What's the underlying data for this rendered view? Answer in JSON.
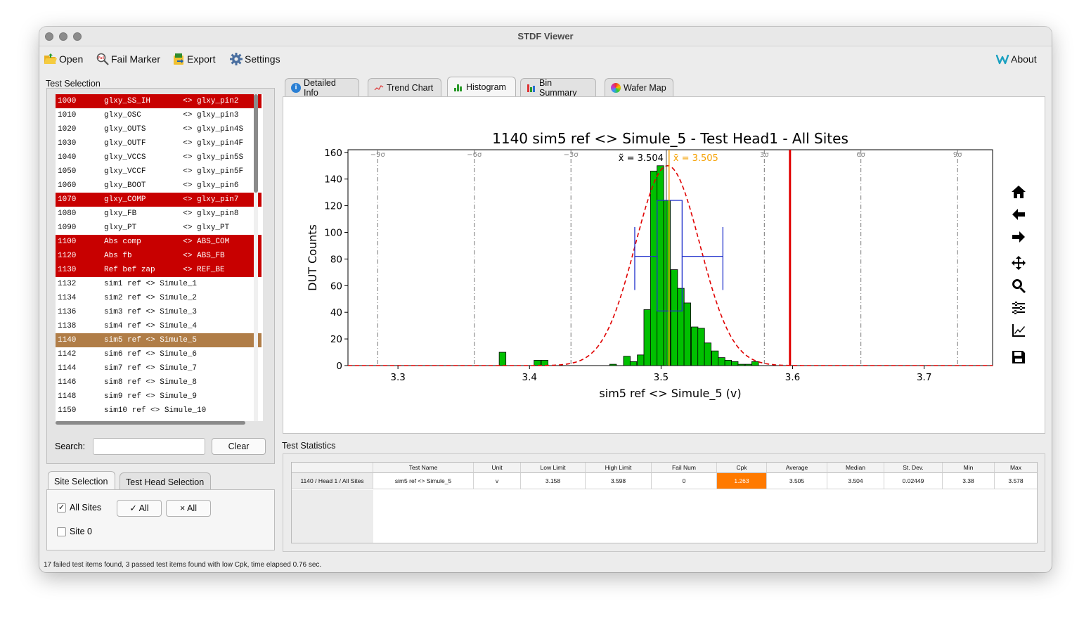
{
  "window": {
    "title": "STDF Viewer"
  },
  "toolbar": {
    "open": "Open",
    "fail_marker": "Fail Marker",
    "export": "Export",
    "settings": "Settings",
    "about": "About"
  },
  "test_selection": {
    "label": "Test Selection",
    "rows": [
      {
        "num": "1000",
        "text": "1000      glxy_SS_IH       <> glxy_pin2",
        "status": "fail"
      },
      {
        "num": "1010",
        "text": "1010      glxy_OSC         <> glxy_pin3",
        "status": "normal"
      },
      {
        "num": "1020",
        "text": "1020      glxy_OUTS        <> glxy_pin4S",
        "status": "normal"
      },
      {
        "num": "1030",
        "text": "1030      glxy_OUTF        <> glxy_pin4F",
        "status": "normal"
      },
      {
        "num": "1040",
        "text": "1040      glxy_VCCS        <> glxy_pin5S",
        "status": "normal"
      },
      {
        "num": "1050",
        "text": "1050      glxy_VCCF        <> glxy_pin5F",
        "status": "normal"
      },
      {
        "num": "1060",
        "text": "1060      glxy_BOOT        <> glxy_pin6",
        "status": "normal"
      },
      {
        "num": "1070",
        "text": "1070      glxy_COMP        <> glxy_pin7",
        "status": "fail"
      },
      {
        "num": "1080",
        "text": "1080      glxy_FB          <> glxy_pin8",
        "status": "normal"
      },
      {
        "num": "1090",
        "text": "1090      glxy_PT          <> glxy_PT",
        "status": "normal"
      },
      {
        "num": "1100",
        "text": "1100      Abs comp         <> ABS_COM",
        "status": "fail"
      },
      {
        "num": "1120",
        "text": "1120      Abs fb           <> ABS_FB",
        "status": "fail"
      },
      {
        "num": "1130",
        "text": "1130      Ref bef zap      <> REF_BE",
        "status": "fail"
      },
      {
        "num": "1132",
        "text": "1132      sim1 ref <> Simule_1",
        "status": "normal"
      },
      {
        "num": "1134",
        "text": "1134      sim2 ref <> Simule_2",
        "status": "normal"
      },
      {
        "num": "1136",
        "text": "1136      sim3 ref <> Simule_3",
        "status": "normal"
      },
      {
        "num": "1138",
        "text": "1138      sim4 ref <> Simule_4",
        "status": "normal"
      },
      {
        "num": "1140",
        "text": "1140      sim5 ref <> Simule_5",
        "status": "selected"
      },
      {
        "num": "1142",
        "text": "1142      sim6 ref <> Simule_6",
        "status": "normal"
      },
      {
        "num": "1144",
        "text": "1144      sim7 ref <> Simule_7",
        "status": "normal"
      },
      {
        "num": "1146",
        "text": "1146      sim8 ref <> Simule_8",
        "status": "normal"
      },
      {
        "num": "1148",
        "text": "1148      sim9 ref <> Simule_9",
        "status": "normal"
      },
      {
        "num": "1150",
        "text": "1150      sim10 ref <> Simule_10",
        "status": "normal"
      }
    ],
    "search_label": "Search:",
    "search_value": "",
    "clear": "Clear"
  },
  "site_tabs": {
    "site": "Site Selection",
    "head": "Test Head Selection"
  },
  "sites": {
    "all_sites": "All Sites",
    "check_all": "✓ All",
    "uncheck_all": "× All",
    "site0": "Site 0"
  },
  "main_tabs": {
    "detailed": "Detailed Info",
    "trend": "Trend Chart",
    "histogram": "Histogram",
    "bin": "Bin Summary",
    "wafer": "Wafer Map"
  },
  "chart_data": {
    "type": "bar",
    "title": "1140 sim5 ref <> Simule_5 - Test Head1 - All Sites",
    "xlabel": "sim5 ref <> Simule_5 (v)",
    "ylabel": "DUT Counts",
    "xlim": [
      3.262,
      3.752
    ],
    "ylim": [
      0,
      162
    ],
    "xticks": [
      "3.3",
      "3.4",
      "3.5",
      "3.6",
      "3.7"
    ],
    "yticks": [
      "0",
      "20",
      "40",
      "60",
      "80",
      "100",
      "120",
      "140",
      "160"
    ],
    "bin_width": 0.0051,
    "bins": [
      {
        "x": 3.3795,
        "y": 10
      },
      {
        "x": 3.406,
        "y": 4
      },
      {
        "x": 3.4115,
        "y": 4
      },
      {
        "x": 3.4635,
        "y": 1
      },
      {
        "x": 3.474,
        "y": 7
      },
      {
        "x": 3.479,
        "y": 3
      },
      {
        "x": 3.4845,
        "y": 8
      },
      {
        "x": 3.4895,
        "y": 42
      },
      {
        "x": 3.4945,
        "y": 146
      },
      {
        "x": 3.4995,
        "y": 150
      },
      {
        "x": 3.5045,
        "y": 124
      },
      {
        "x": 3.51,
        "y": 72
      },
      {
        "x": 3.515,
        "y": 58
      },
      {
        "x": 3.52,
        "y": 47
      },
      {
        "x": 3.5255,
        "y": 29
      },
      {
        "x": 3.5305,
        "y": 28
      },
      {
        "x": 3.5355,
        "y": 17
      },
      {
        "x": 3.541,
        "y": 11
      },
      {
        "x": 3.546,
        "y": 6
      },
      {
        "x": 3.551,
        "y": 4
      },
      {
        "x": 3.556,
        "y": 3
      },
      {
        "x": 3.561,
        "y": 1
      },
      {
        "x": 3.5665,
        "y": 1
      },
      {
        "x": 3.5715,
        "y": 3
      }
    ],
    "median_label": "x̃ = 3.504",
    "mean_label": "x̄ = 3.505",
    "median": 3.504,
    "mean": 3.505,
    "std": 0.02449,
    "low_limit": 3.158,
    "high_limit": 3.598,
    "sigma_labels": [
      "−9σ",
      "−6σ",
      "−3σ",
      "3σ",
      "6σ",
      "9σ"
    ],
    "sigma_lines": [
      3.2846,
      3.3581,
      3.4315,
      3.5785,
      3.6519,
      3.7254
    ],
    "boxplot": {
      "min": 3.48,
      "q1": 3.497,
      "median": 3.504,
      "q3": 3.516,
      "max": 3.547,
      "y_center": 82,
      "box_top": 124,
      "box_bottom": 41,
      "whisker_top": 104,
      "whisker_bottom": 62
    },
    "colors": {
      "bar": "#00c000",
      "normal_curve": "#e00000",
      "limit": "#e00000",
      "mean": "#f5a000",
      "median": "#444444",
      "box": "#2233cc"
    }
  },
  "statistics": {
    "label": "Test Statistics",
    "columns": [
      "",
      "Test Name",
      "Unit",
      "Low Limit",
      "High Limit",
      "Fail Num",
      "Cpk",
      "Average",
      "Median",
      "St. Dev.",
      "Min",
      "Max"
    ],
    "row": [
      "1140 / Head 1 / All Sites",
      "sim5 ref <> Simule_5",
      "v",
      "3.158",
      "3.598",
      "0",
      "1.263",
      "3.505",
      "3.504",
      "0.02449",
      "3.38",
      "3.578"
    ],
    "cpk_color": "#ff7a00"
  },
  "status_bar": "17 failed test items found, 3 passed test items found with low Cpk, time elapsed 0.76 sec.",
  "icons": {
    "open": "folder-open-icon",
    "fail_marker": "magnifier-fail-icon",
    "export": "export-icon",
    "settings": "gear-icon",
    "about": "about-icon"
  }
}
